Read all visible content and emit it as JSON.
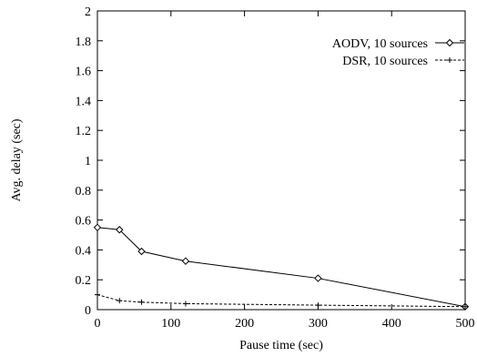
{
  "chart_data": {
    "type": "line",
    "xlabel": "Pause time (sec)",
    "ylabel": "Avg. delay (sec)",
    "xlim": [
      0,
      500
    ],
    "ylim": [
      0,
      2
    ],
    "x_ticks": [
      "0",
      "100",
      "200",
      "300",
      "400",
      "500"
    ],
    "y_ticks": [
      "0",
      "0.2",
      "0.4",
      "0.6",
      "0.8",
      "1",
      "1.2",
      "1.4",
      "1.6",
      "1.8",
      "2"
    ],
    "grid": false,
    "legend_position": "top-right",
    "series": [
      {
        "name": "AODV, 10 sources",
        "marker": "diamond",
        "line_style": "solid",
        "color": "#000000",
        "x": [
          0,
          30,
          60,
          120,
          300,
          500
        ],
        "y": [
          0.55,
          0.535,
          0.39,
          0.325,
          0.21,
          0.02
        ]
      },
      {
        "name": "DSR, 10 sources",
        "marker": "plus",
        "line_style": "dashed",
        "color": "#000000",
        "x": [
          0,
          30,
          60,
          120,
          300,
          500
        ],
        "y": [
          0.1,
          0.06,
          0.05,
          0.04,
          0.03,
          0.02
        ]
      }
    ]
  }
}
